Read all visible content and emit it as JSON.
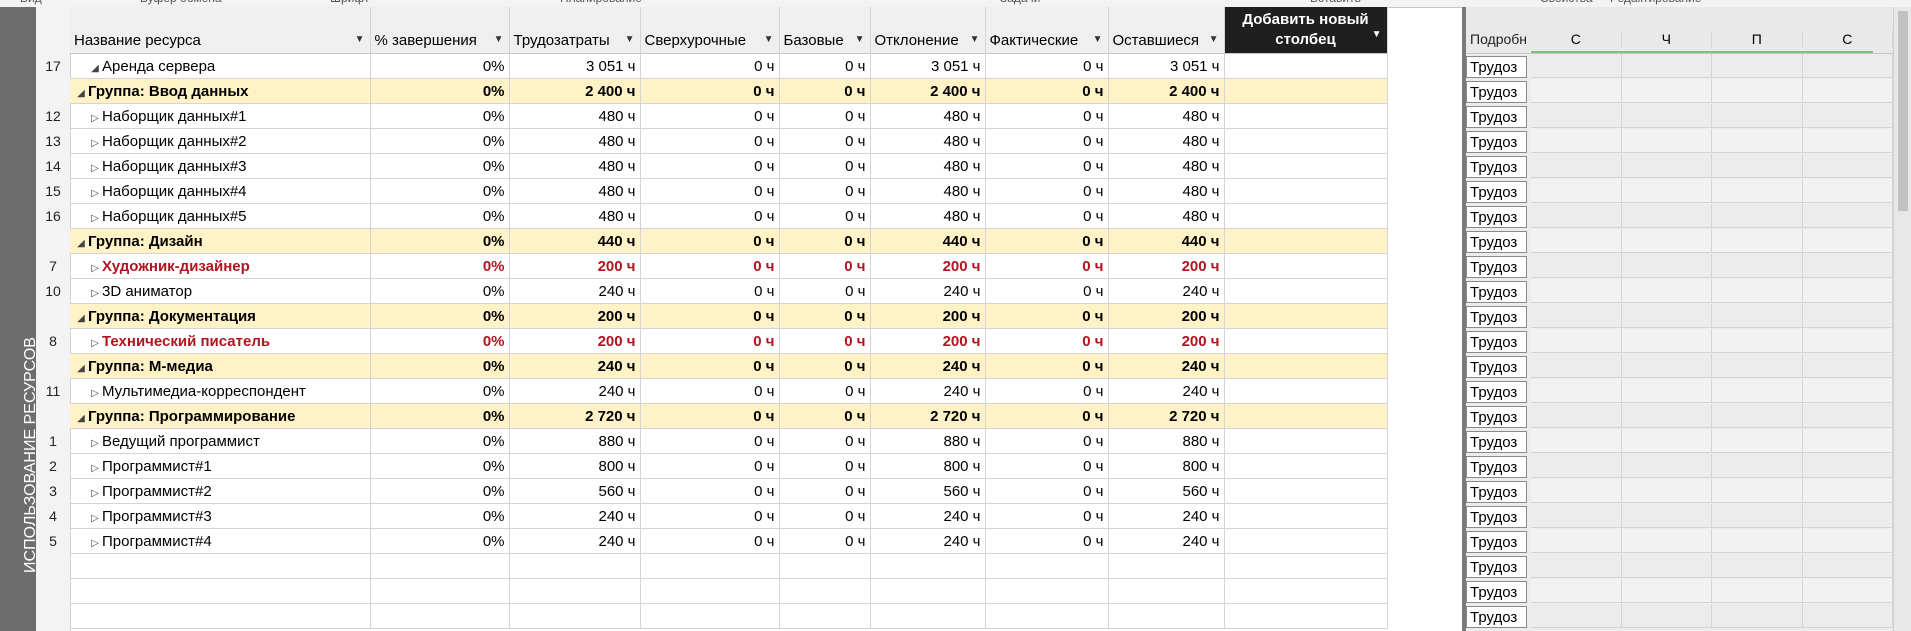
{
  "ribbon": {
    "groups": [
      "Вид",
      "Буфер обмена",
      "Шрифт",
      "Планирование",
      "Задачи",
      "Вставить",
      "Свойства",
      "Редактирование"
    ]
  },
  "view_label": "ИСПОЛЬЗОВАНИЕ РЕСУРСОВ",
  "columns": {
    "name": "Название ресурса",
    "complete": "% завершения",
    "work": "Трудозатраты",
    "overtime": "Сверхурочные",
    "baseline": "Базовые",
    "variance": "Отклонение",
    "actual": "Фактические",
    "remaining": "Оставшиеся",
    "add_new": "Добавить новый столбец"
  },
  "rows": [
    {
      "id": "17",
      "type": "resource",
      "expand": "◢",
      "name": "Аренда сервера",
      "complete": "0%",
      "work": "3 051 ч",
      "overtime": "0 ч",
      "baseline": "0 ч",
      "variance": "3 051 ч",
      "actual": "0 ч",
      "remaining": "3 051 ч"
    },
    {
      "id": "",
      "type": "group",
      "expand": "◢",
      "name": "Группа: Ввод данных",
      "complete": "0%",
      "work": "2 400 ч",
      "overtime": "0 ч",
      "baseline": "0 ч",
      "variance": "2 400 ч",
      "actual": "0 ч",
      "remaining": "2 400 ч"
    },
    {
      "id": "12",
      "type": "resource",
      "expand": "▷",
      "name": "Наборщик данных#1",
      "complete": "0%",
      "work": "480 ч",
      "overtime": "0 ч",
      "baseline": "0 ч",
      "variance": "480 ч",
      "actual": "0 ч",
      "remaining": "480 ч"
    },
    {
      "id": "13",
      "type": "resource",
      "expand": "▷",
      "name": "Наборщик данных#2",
      "complete": "0%",
      "work": "480 ч",
      "overtime": "0 ч",
      "baseline": "0 ч",
      "variance": "480 ч",
      "actual": "0 ч",
      "remaining": "480 ч"
    },
    {
      "id": "14",
      "type": "resource",
      "expand": "▷",
      "name": "Наборщик данных#3",
      "complete": "0%",
      "work": "480 ч",
      "overtime": "0 ч",
      "baseline": "0 ч",
      "variance": "480 ч",
      "actual": "0 ч",
      "remaining": "480 ч"
    },
    {
      "id": "15",
      "type": "resource",
      "expand": "▷",
      "name": "Наборщик данных#4",
      "complete": "0%",
      "work": "480 ч",
      "overtime": "0 ч",
      "baseline": "0 ч",
      "variance": "480 ч",
      "actual": "0 ч",
      "remaining": "480 ч"
    },
    {
      "id": "16",
      "type": "resource",
      "expand": "▷",
      "name": "Наборщик данных#5",
      "complete": "0%",
      "work": "480 ч",
      "overtime": "0 ч",
      "baseline": "0 ч",
      "variance": "480 ч",
      "actual": "0 ч",
      "remaining": "480 ч"
    },
    {
      "id": "",
      "type": "group",
      "expand": "◢",
      "name": "Группа: Дизайн",
      "complete": "0%",
      "work": "440 ч",
      "overtime": "0 ч",
      "baseline": "0 ч",
      "variance": "440 ч",
      "actual": "0 ч",
      "remaining": "440 ч"
    },
    {
      "id": "7",
      "type": "overallocated",
      "expand": "▷",
      "name": "Художник-дизайнер",
      "complete": "0%",
      "work": "200 ч",
      "overtime": "0 ч",
      "baseline": "0 ч",
      "variance": "200 ч",
      "actual": "0 ч",
      "remaining": "200 ч"
    },
    {
      "id": "10",
      "type": "resource",
      "expand": "▷",
      "name": "3D аниматор",
      "complete": "0%",
      "work": "240 ч",
      "overtime": "0 ч",
      "baseline": "0 ч",
      "variance": "240 ч",
      "actual": "0 ч",
      "remaining": "240 ч"
    },
    {
      "id": "",
      "type": "group",
      "expand": "◢",
      "name": "Группа: Документация",
      "complete": "0%",
      "work": "200 ч",
      "overtime": "0 ч",
      "baseline": "0 ч",
      "variance": "200 ч",
      "actual": "0 ч",
      "remaining": "200 ч"
    },
    {
      "id": "8",
      "type": "overallocated",
      "expand": "▷",
      "name": "Технический писатель",
      "complete": "0%",
      "work": "200 ч",
      "overtime": "0 ч",
      "baseline": "0 ч",
      "variance": "200 ч",
      "actual": "0 ч",
      "remaining": "200 ч"
    },
    {
      "id": "",
      "type": "group",
      "expand": "◢",
      "name": "Группа: М-медиа",
      "complete": "0%",
      "work": "240 ч",
      "overtime": "0 ч",
      "baseline": "0 ч",
      "variance": "240 ч",
      "actual": "0 ч",
      "remaining": "240 ч"
    },
    {
      "id": "11",
      "type": "resource",
      "expand": "▷",
      "name": "Мультимедиа-корреспондент",
      "complete": "0%",
      "work": "240 ч",
      "overtime": "0 ч",
      "baseline": "0 ч",
      "variance": "240 ч",
      "actual": "0 ч",
      "remaining": "240 ч"
    },
    {
      "id": "",
      "type": "group",
      "expand": "◢",
      "name": "Группа: Программирование",
      "complete": "0%",
      "work": "2 720 ч",
      "overtime": "0 ч",
      "baseline": "0 ч",
      "variance": "2 720 ч",
      "actual": "0 ч",
      "remaining": "2 720 ч"
    },
    {
      "id": "1",
      "type": "resource",
      "expand": "▷",
      "name": "Ведущий программист",
      "complete": "0%",
      "work": "880 ч",
      "overtime": "0 ч",
      "baseline": "0 ч",
      "variance": "880 ч",
      "actual": "0 ч",
      "remaining": "880 ч"
    },
    {
      "id": "2",
      "type": "resource",
      "expand": "▷",
      "name": "Программист#1",
      "complete": "0%",
      "work": "800 ч",
      "overtime": "0 ч",
      "baseline": "0 ч",
      "variance": "800 ч",
      "actual": "0 ч",
      "remaining": "800 ч"
    },
    {
      "id": "3",
      "type": "resource",
      "expand": "▷",
      "name": "Программист#2",
      "complete": "0%",
      "work": "560 ч",
      "overtime": "0 ч",
      "baseline": "0 ч",
      "variance": "560 ч",
      "actual": "0 ч",
      "remaining": "560 ч"
    },
    {
      "id": "4",
      "type": "resource",
      "expand": "▷",
      "name": "Программист#3",
      "complete": "0%",
      "work": "240 ч",
      "overtime": "0 ч",
      "baseline": "0 ч",
      "variance": "240 ч",
      "actual": "0 ч",
      "remaining": "240 ч"
    },
    {
      "id": "5",
      "type": "resource",
      "expand": "▷",
      "name": "Программист#4",
      "complete": "0%",
      "work": "240 ч",
      "overtime": "0 ч",
      "baseline": "0 ч",
      "variance": "240 ч",
      "actual": "0 ч",
      "remaining": "240 ч"
    }
  ],
  "empty_rows": 3,
  "timephased": {
    "details_header": "Подробн",
    "day_headers": [
      "С",
      "Ч",
      "П",
      "С"
    ],
    "detail_label": "Трудоз",
    "row_count": 23
  },
  "colors": {
    "group_fill": "#fff2c7",
    "overallocated_text": "#b0151f",
    "view_bar": "#6d6d6d",
    "add_column_header": "#1f1f1f"
  }
}
